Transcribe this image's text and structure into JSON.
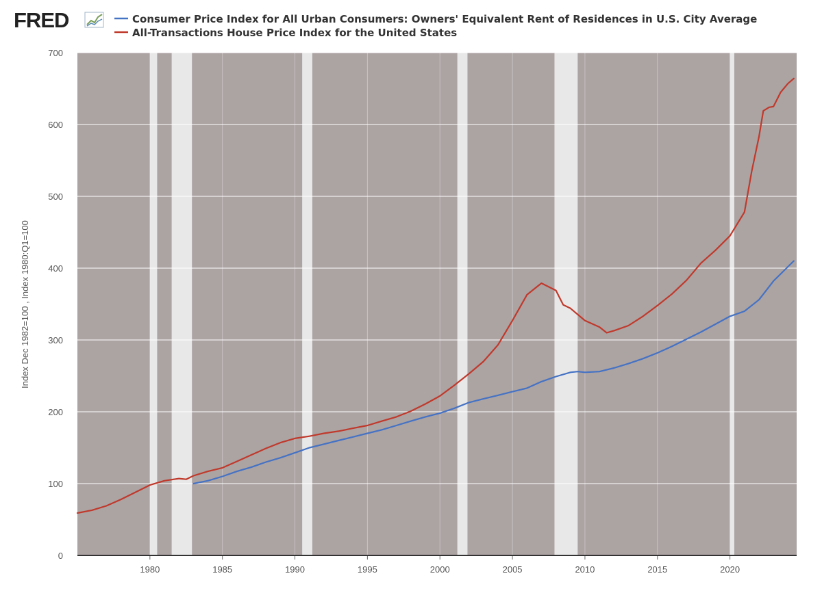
{
  "header": {
    "logo_text": "FRED"
  },
  "colors": {
    "cpi_line": "#4472c4",
    "hpi_line": "#c0392b",
    "plot_background": "#aca3a3",
    "recession_band": "#e8e8e8",
    "gridline": "#ffffff"
  },
  "chart_data": {
    "type": "line",
    "title": "",
    "xlabel": "",
    "ylabel": "Index Dec 1982=100 , Index 1980:Q1=100",
    "xlim": [
      1975.0,
      2024.6
    ],
    "ylim": [
      0,
      700
    ],
    "y_ticks": [
      0,
      100,
      200,
      300,
      400,
      500,
      600,
      700
    ],
    "x_ticks": [
      1980,
      1985,
      1990,
      1995,
      2000,
      2005,
      2010,
      2015,
      2020
    ],
    "grid": true,
    "legend_position": "top",
    "recessions": [
      [
        1980.0,
        1980.5
      ],
      [
        1981.5,
        1982.9
      ],
      [
        1990.5,
        1991.2
      ],
      [
        2001.2,
        2001.9
      ],
      [
        2007.9,
        2009.5
      ],
      [
        2020.0,
        2020.3
      ]
    ],
    "series": [
      {
        "name": "Consumer Price Index for All Urban Consumers: Owners' Equivalent Rent of Residences in U.S. City Average",
        "color": "#4472c4",
        "points": [
          [
            1983.0,
            100
          ],
          [
            1984,
            104
          ],
          [
            1985,
            110
          ],
          [
            1986,
            117
          ],
          [
            1987,
            123
          ],
          [
            1988,
            130
          ],
          [
            1989,
            136
          ],
          [
            1990,
            143
          ],
          [
            1991,
            150
          ],
          [
            1992,
            155
          ],
          [
            1993,
            160
          ],
          [
            1994,
            165
          ],
          [
            1995,
            170
          ],
          [
            1996,
            175
          ],
          [
            1997,
            181
          ],
          [
            1998,
            187
          ],
          [
            1999,
            193
          ],
          [
            2000,
            198
          ],
          [
            2001,
            205
          ],
          [
            2002,
            213
          ],
          [
            2003,
            218
          ],
          [
            2004,
            223
          ],
          [
            2005,
            228
          ],
          [
            2006,
            233
          ],
          [
            2007,
            242
          ],
          [
            2008,
            249
          ],
          [
            2009,
            255
          ],
          [
            2009.5,
            256
          ],
          [
            2010,
            255
          ],
          [
            2011,
            256
          ],
          [
            2012,
            261
          ],
          [
            2013,
            267
          ],
          [
            2014,
            274
          ],
          [
            2015,
            282
          ],
          [
            2016,
            291
          ],
          [
            2017,
            301
          ],
          [
            2018,
            311
          ],
          [
            2019,
            322
          ],
          [
            2020,
            333
          ],
          [
            2021,
            340
          ],
          [
            2022,
            356
          ],
          [
            2023,
            382
          ],
          [
            2024,
            402
          ],
          [
            2024.4,
            410
          ]
        ]
      },
      {
        "name": "All-Transactions House Price Index for the United States",
        "color": "#c0392b",
        "points": [
          [
            1975.0,
            59
          ],
          [
            1976,
            63
          ],
          [
            1977,
            69
          ],
          [
            1978,
            78
          ],
          [
            1979,
            88
          ],
          [
            1980,
            98
          ],
          [
            1981,
            104
          ],
          [
            1982,
            107
          ],
          [
            1982.5,
            106
          ],
          [
            1983,
            111
          ],
          [
            1984,
            117
          ],
          [
            1985,
            122
          ],
          [
            1986,
            131
          ],
          [
            1987,
            140
          ],
          [
            1988,
            149
          ],
          [
            1989,
            157
          ],
          [
            1990,
            163
          ],
          [
            1991,
            166
          ],
          [
            1992,
            170
          ],
          [
            1993,
            173
          ],
          [
            1994,
            177
          ],
          [
            1995,
            181
          ],
          [
            1996,
            187
          ],
          [
            1997,
            193
          ],
          [
            1998,
            201
          ],
          [
            1999,
            211
          ],
          [
            2000,
            222
          ],
          [
            2001,
            237
          ],
          [
            2002,
            253
          ],
          [
            2003,
            270
          ],
          [
            2004,
            293
          ],
          [
            2005,
            327
          ],
          [
            2006,
            363
          ],
          [
            2007,
            379
          ],
          [
            2008,
            369
          ],
          [
            2008.5,
            349
          ],
          [
            2009,
            344
          ],
          [
            2010,
            327
          ],
          [
            2011,
            318
          ],
          [
            2011.5,
            310
          ],
          [
            2012,
            313
          ],
          [
            2013,
            320
          ],
          [
            2014,
            333
          ],
          [
            2015,
            348
          ],
          [
            2016,
            364
          ],
          [
            2017,
            383
          ],
          [
            2018,
            407
          ],
          [
            2019,
            425
          ],
          [
            2020,
            445
          ],
          [
            2021,
            478
          ],
          [
            2021.5,
            535
          ],
          [
            2022,
            583
          ],
          [
            2022.3,
            619
          ],
          [
            2022.7,
            624
          ],
          [
            2023,
            625
          ],
          [
            2023.5,
            645
          ],
          [
            2024,
            657
          ],
          [
            2024.4,
            664
          ]
        ]
      }
    ]
  }
}
